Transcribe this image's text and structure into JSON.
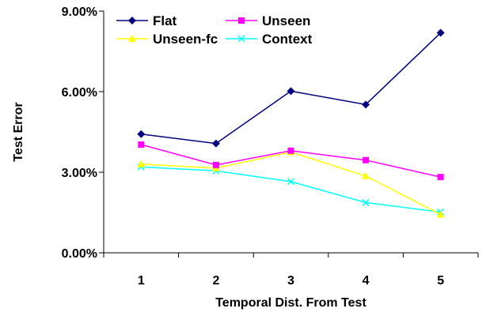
{
  "chart_data": {
    "type": "line",
    "xlabel": "Temporal Dist. From Test",
    "ylabel": "Test Error",
    "categories": [
      "1",
      "2",
      "3",
      "4",
      "5"
    ],
    "ylim": [
      0,
      9
    ],
    "yticks": [
      0,
      3,
      6,
      9
    ],
    "ytick_labels": [
      "0.00%",
      "3.00%",
      "6.00%",
      "9.00%"
    ],
    "legend_position": "top-left",
    "series": [
      {
        "name": "Flat",
        "values": [
          4.42,
          4.07,
          6.02,
          5.52,
          8.19
        ],
        "color": "#000080",
        "marker": "diamond"
      },
      {
        "name": "Unseen",
        "values": [
          4.03,
          3.27,
          3.8,
          3.45,
          2.82
        ],
        "color": "#ff00ff",
        "marker": "square"
      },
      {
        "name": "Unseen-fc",
        "values": [
          3.3,
          3.15,
          3.75,
          2.86,
          1.43
        ],
        "color": "#ffff00",
        "marker": "triangle"
      },
      {
        "name": "Context",
        "values": [
          3.2,
          3.05,
          2.65,
          1.87,
          1.52
        ],
        "color": "#00ffff",
        "marker": "x"
      }
    ]
  }
}
